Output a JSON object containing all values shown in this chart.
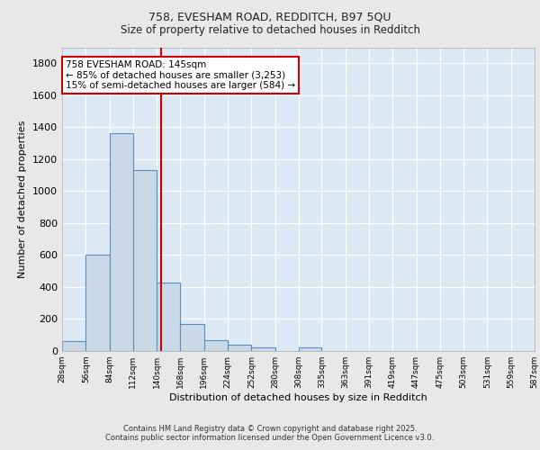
{
  "title_line1": "758, EVESHAM ROAD, REDDITCH, B97 5QU",
  "title_line2": "Size of property relative to detached houses in Redditch",
  "xlabel": "Distribution of detached houses by size in Redditch",
  "ylabel": "Number of detached properties",
  "footer_line1": "Contains HM Land Registry data © Crown copyright and database right 2025.",
  "footer_line2": "Contains public sector information licensed under the Open Government Licence v3.0.",
  "annotation_line1": "758 EVESHAM ROAD: 145sqm",
  "annotation_line2": "← 85% of detached houses are smaller (3,253)",
  "annotation_line3": "15% of semi-detached houses are larger (584) →",
  "bar_left_edges": [
    28,
    56,
    84,
    112,
    140,
    168,
    196,
    224,
    252,
    280,
    308,
    335,
    363,
    391,
    419,
    447,
    475,
    503,
    531,
    559
  ],
  "bar_widths": [
    28,
    28,
    28,
    28,
    28,
    28,
    28,
    28,
    28,
    28,
    27,
    28,
    28,
    28,
    28,
    28,
    28,
    28,
    28,
    28
  ],
  "bar_heights": [
    60,
    605,
    1360,
    1130,
    430,
    170,
    70,
    40,
    20,
    0,
    20,
    0,
    0,
    0,
    0,
    0,
    0,
    0,
    0,
    0
  ],
  "bar_facecolor": "#c9d9e8",
  "bar_edgecolor": "#5b8db8",
  "bar_linewidth": 0.8,
  "grid_color": "#ffffff",
  "background_color": "#dce9f5",
  "fig_background_color": "#e8e8e8",
  "vline_x": 145,
  "vline_color": "#cc0000",
  "vline_linewidth": 1.5,
  "ylim": [
    0,
    1900
  ],
  "yticks": [
    0,
    200,
    400,
    600,
    800,
    1000,
    1200,
    1400,
    1600,
    1800
  ],
  "xlim": [
    28,
    587
  ],
  "xtick_labels": [
    "28sqm",
    "56sqm",
    "84sqm",
    "112sqm",
    "140sqm",
    "168sqm",
    "196sqm",
    "224sqm",
    "252sqm",
    "280sqm",
    "308sqm",
    "335sqm",
    "363sqm",
    "391sqm",
    "419sqm",
    "447sqm",
    "475sqm",
    "503sqm",
    "531sqm",
    "559sqm",
    "587sqm"
  ],
  "xtick_positions": [
    28,
    56,
    84,
    112,
    140,
    168,
    196,
    224,
    252,
    280,
    308,
    335,
    363,
    391,
    419,
    447,
    475,
    503,
    531,
    559,
    587
  ]
}
